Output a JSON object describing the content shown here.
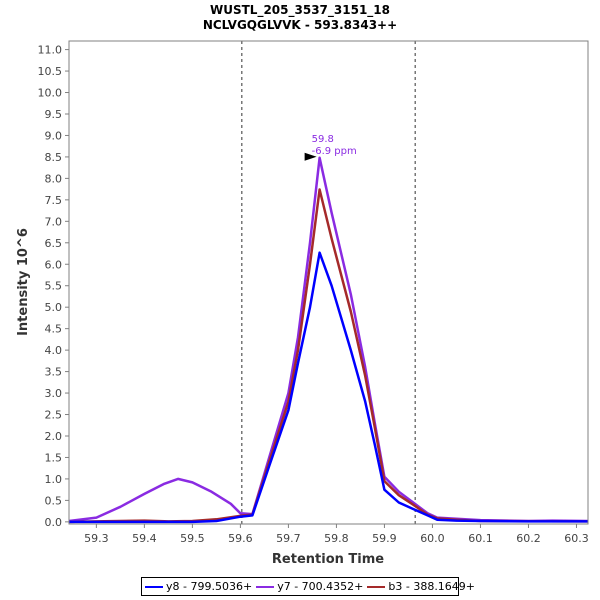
{
  "chart_data": {
    "type": "line",
    "title": "WUSTL_205_3537_3151_18",
    "subtitle": "NCLVGQGLVVK - 593.8343++",
    "xlabel": "Retention Time",
    "ylabel": "Intensity 10^6",
    "xlim": [
      59.243,
      60.324
    ],
    "ylim": [
      -0.05,
      11.2
    ],
    "xticks": [
      "59.3",
      "59.4",
      "59.5",
      "59.6",
      "59.7",
      "59.8",
      "59.9",
      "60.0",
      "60.1",
      "60.2",
      "60.3"
    ],
    "yticks": [
      "0.0",
      "0.5",
      "1.0",
      "1.5",
      "2.0",
      "2.5",
      "3.0",
      "3.5",
      "4.0",
      "4.5",
      "5.0",
      "5.5",
      "6.0",
      "6.5",
      "7.0",
      "7.5",
      "8.0",
      "8.5",
      "9.0",
      "9.5",
      "10.0",
      "10.5",
      "11.0"
    ],
    "vlines": [
      59.603,
      59.964
    ],
    "annotation": {
      "x": 59.765,
      "y": 8.48,
      "line1": "59.8",
      "line2": "-6.9 ppm",
      "color": "#8a2be2"
    },
    "series": [
      {
        "name": "y8 - 799.5036+",
        "color": "#0000ff",
        "x": [
          59.243,
          59.3,
          59.4,
          59.5,
          59.55,
          59.6,
          59.625,
          59.66,
          59.7,
          59.72,
          59.745,
          59.765,
          59.79,
          59.83,
          59.86,
          59.88,
          59.9,
          59.93,
          59.96,
          59.99,
          60.01,
          60.05,
          60.1,
          60.2,
          60.324
        ],
        "y": [
          0.0,
          0.0,
          0.0,
          0.0,
          0.02,
          0.12,
          0.15,
          1.3,
          2.6,
          3.7,
          5.0,
          6.27,
          5.5,
          4.0,
          2.8,
          1.8,
          0.75,
          0.45,
          0.3,
          0.15,
          0.05,
          0.03,
          0.02,
          0.01,
          0.01
        ]
      },
      {
        "name": "y7 - 700.4352+",
        "color": "#8a2be2",
        "x": [
          59.243,
          59.3,
          59.35,
          59.4,
          59.44,
          59.47,
          59.5,
          59.54,
          59.58,
          59.6,
          59.625,
          59.66,
          59.7,
          59.72,
          59.745,
          59.765,
          59.79,
          59.83,
          59.86,
          59.88,
          59.9,
          59.93,
          59.96,
          59.99,
          60.01,
          60.05,
          60.1,
          60.2,
          60.25,
          60.324
        ],
        "y": [
          0.02,
          0.1,
          0.35,
          0.65,
          0.88,
          1.0,
          0.92,
          0.7,
          0.42,
          0.2,
          0.18,
          1.5,
          3.0,
          4.3,
          6.5,
          8.48,
          7.2,
          5.3,
          3.6,
          2.3,
          1.05,
          0.7,
          0.45,
          0.2,
          0.1,
          0.07,
          0.04,
          0.02,
          0.03,
          0.02
        ]
      },
      {
        "name": "b3 - 388.1649+",
        "color": "#a52a2a",
        "x": [
          59.243,
          59.3,
          59.4,
          59.45,
          59.5,
          59.55,
          59.6,
          59.625,
          59.66,
          59.7,
          59.72,
          59.745,
          59.765,
          59.79,
          59.83,
          59.86,
          59.88,
          59.9,
          59.93,
          59.96,
          59.99,
          60.01,
          60.05,
          60.1,
          60.324
        ],
        "y": [
          0.0,
          0.01,
          0.03,
          0.01,
          0.02,
          0.06,
          0.14,
          0.17,
          1.4,
          2.8,
          4.0,
          6.0,
          7.74,
          6.6,
          4.9,
          3.4,
          2.2,
          0.95,
          0.62,
          0.4,
          0.17,
          0.08,
          0.05,
          0.02,
          0.01
        ]
      }
    ],
    "legend_position": "bottom"
  }
}
